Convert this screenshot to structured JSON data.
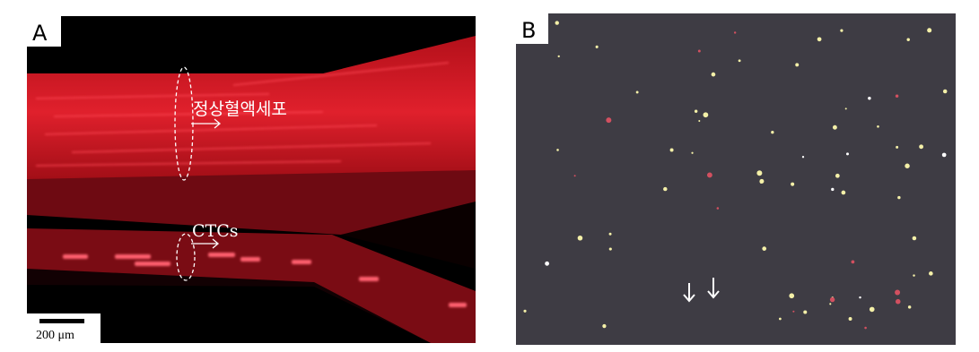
{
  "panel_a": {
    "label": "A",
    "annotations": [
      "정상혈액세포",
      "CTCs"
    ],
    "scale_bar": "200 μm"
  },
  "panel_b": {
    "label": "B"
  }
}
